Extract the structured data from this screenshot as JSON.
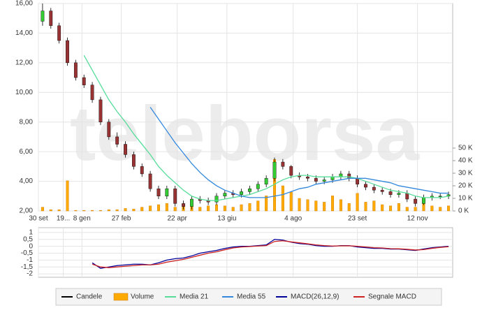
{
  "chart_data": [
    {
      "type": "candlestick",
      "watermark": "teleborsa",
      "grid": true,
      "legend": "bottom",
      "x": [
        1,
        3,
        5,
        7,
        9,
        11,
        13,
        15,
        17,
        19,
        21,
        23,
        25,
        27,
        29,
        31,
        33,
        35,
        37,
        39,
        41,
        43,
        45,
        47,
        49,
        51,
        53,
        55,
        57,
        59,
        61,
        63,
        65,
        67,
        69,
        71,
        73,
        75,
        77,
        79,
        81,
        83,
        85,
        87,
        89,
        91,
        93,
        95,
        97,
        99
      ],
      "xlim": [
        0,
        100
      ],
      "xticks": [
        {
          "value": 0,
          "label": "30 set"
        },
        {
          "value": 6,
          "label": "19..."
        },
        {
          "value": 10.5,
          "label": "8 gen"
        },
        {
          "value": 20,
          "label": "27 feb"
        },
        {
          "value": 33.5,
          "label": "22 apr"
        },
        {
          "value": 45.5,
          "label": "13 giu"
        },
        {
          "value": 61.5,
          "label": "4 ago"
        },
        {
          "value": 77,
          "label": "23 set"
        },
        {
          "value": 91.5,
          "label": "12 nov"
        }
      ],
      "ylim": [
        2,
        16
      ],
      "yticks": [
        {
          "value": 2,
          "label": "2,00"
        },
        {
          "value": 4,
          "label": "4,00"
        },
        {
          "value": 6,
          "label": "6,00"
        },
        {
          "value": 8,
          "label": "8,00"
        },
        {
          "value": 10,
          "label": "10,00"
        },
        {
          "value": 12,
          "label": "12,00"
        },
        {
          "value": 14,
          "label": "14,00"
        },
        {
          "value": 16,
          "label": "16,00"
        }
      ],
      "y2lim": [
        0,
        165000
      ],
      "y2ticks": [
        {
          "value": 0,
          "label": "0 K"
        },
        {
          "value": 10000,
          "label": "10 K"
        },
        {
          "value": 20000,
          "label": "20 K"
        },
        {
          "value": 30000,
          "label": "30 K"
        },
        {
          "value": 40000,
          "label": "40 K"
        },
        {
          "value": 50000,
          "label": "50 K"
        }
      ],
      "series": [
        {
          "name": "Candele",
          "type": "candlestick",
          "color": "#000000",
          "up_color": "#33cc33",
          "down_color": "#993333",
          "open": [
            14.8,
            15.5,
            14.5,
            13.5,
            12,
            11,
            10.5,
            9.5,
            8,
            7,
            6.5,
            5.8,
            5,
            4.5,
            3.5,
            3,
            3.5,
            2.5,
            2.3,
            2.8,
            2.7,
            2.6,
            3,
            3.2,
            3.1,
            3.3,
            3.5,
            3.8,
            4.2,
            5.3,
            5,
            4.4,
            4.3,
            4.2,
            4,
            4.1,
            4.3,
            4.5,
            4.2,
            3.8,
            3.6,
            3.4,
            3.3,
            3.1,
            3.2,
            2.8,
            2.5,
            2.9,
            3,
            3
          ],
          "high": [
            16,
            15.7,
            14.7,
            13.7,
            12.2,
            11.2,
            10.7,
            9.7,
            8.2,
            7.3,
            6.7,
            6,
            5.2,
            4.7,
            3.7,
            3.7,
            3.7,
            2.7,
            3,
            3,
            2.9,
            3.2,
            3.4,
            3.4,
            3.5,
            3.7,
            4,
            4.4,
            5.6,
            5.5,
            5.1,
            4.6,
            4.5,
            4.4,
            4.3,
            4.5,
            4.7,
            4.7,
            4.4,
            4,
            3.8,
            3.6,
            3.5,
            3.4,
            3.4,
            3,
            3.1,
            3.2,
            3.2,
            3.3
          ],
          "low": [
            14.5,
            14.3,
            13.3,
            11.8,
            10.8,
            10.3,
            9.3,
            7.8,
            6.8,
            6.3,
            5.6,
            4.8,
            4.3,
            3.3,
            2.8,
            2.8,
            2.3,
            2.1,
            2.1,
            2.5,
            2.4,
            2.4,
            2.8,
            2.9,
            2.9,
            3.1,
            3.3,
            3.6,
            4,
            4.8,
            4.2,
            4.1,
            4,
            3.8,
            3.8,
            3.9,
            4.1,
            4,
            3.6,
            3.4,
            3.2,
            3.1,
            2.9,
            2.9,
            2.6,
            2.3,
            2.4,
            2.7,
            2.8,
            2.8
          ],
          "close": [
            15.5,
            14.5,
            13.5,
            12,
            11,
            10.5,
            9.5,
            8,
            7,
            6.5,
            5.8,
            5,
            4.5,
            3.5,
            3,
            3.5,
            2.5,
            2.3,
            2.8,
            2.7,
            2.6,
            3,
            3.2,
            3.1,
            3.3,
            3.5,
            3.8,
            4.2,
            5.3,
            5,
            4.4,
            4.3,
            4.2,
            4,
            4.1,
            4.3,
            4.5,
            4.2,
            3.8,
            3.6,
            3.4,
            3.3,
            3.1,
            3.2,
            2.8,
            2.5,
            2.9,
            3,
            3,
            3.1
          ]
        },
        {
          "name": "Volume",
          "type": "bar",
          "axis": "y2",
          "color": "#ffaa00",
          "values": [
            3000,
            1000,
            1000,
            24000,
            500,
            500,
            500,
            500,
            1000,
            1000,
            2000,
            1500,
            3000,
            4000,
            5000,
            6000,
            3000,
            5000,
            4000,
            3000,
            4000,
            5000,
            4000,
            3000,
            5000,
            6000,
            8000,
            12000,
            41000,
            20000,
            15000,
            10000,
            9000,
            8000,
            7000,
            12000,
            9000,
            6000,
            14000,
            7000,
            8000,
            5000,
            4000,
            6000,
            3000,
            3000,
            7000,
            4000,
            3000,
            4000
          ]
        },
        {
          "name": "Media 21",
          "type": "line",
          "color": "#55dd99",
          "values": [
            null,
            null,
            null,
            null,
            null,
            12.5,
            11.5,
            10.5,
            9.5,
            8.7,
            8,
            7.2,
            6.5,
            5.8,
            5,
            4.4,
            3.9,
            3.4,
            3,
            2.8,
            2.7,
            2.7,
            2.8,
            2.9,
            3,
            3.1,
            3.3,
            3.5,
            3.8,
            4.1,
            4.3,
            4.4,
            4.4,
            4.3,
            4.3,
            4.3,
            4.3,
            4.3,
            4.2,
            4,
            3.8,
            3.6,
            3.4,
            3.3,
            3.2,
            3,
            2.9,
            2.9,
            2.9,
            3
          ]
        },
        {
          "name": "Media 55",
          "type": "line",
          "color": "#3388dd",
          "values": [
            null,
            null,
            null,
            null,
            null,
            null,
            null,
            null,
            null,
            null,
            null,
            null,
            null,
            9,
            8.2,
            7.4,
            6.6,
            5.9,
            5.2,
            4.6,
            4.1,
            3.7,
            3.4,
            3.2,
            3,
            2.9,
            2.9,
            2.9,
            3,
            3.1,
            3.3,
            3.5,
            3.6,
            3.8,
            3.9,
            4,
            4.1,
            4.2,
            4.2,
            4.2,
            4.1,
            4,
            3.9,
            3.7,
            3.6,
            3.5,
            3.4,
            3.3,
            3.2,
            3.2
          ]
        }
      ]
    },
    {
      "type": "line",
      "grid": true,
      "x": [
        1,
        3,
        5,
        7,
        9,
        11,
        13,
        15,
        17,
        19,
        21,
        23,
        25,
        27,
        29,
        31,
        33,
        35,
        37,
        39,
        41,
        43,
        45,
        47,
        49,
        51,
        53,
        55,
        57,
        59,
        61,
        63,
        65,
        67,
        69,
        71,
        73,
        75,
        77,
        79,
        81,
        83,
        85,
        87,
        89,
        91,
        93,
        95,
        97,
        99
      ],
      "xlim": [
        0,
        100
      ],
      "ylim": [
        -2.25,
        1.35
      ],
      "yticks": [
        1,
        {
          "value": 0.5,
          "label": "0,5"
        },
        0,
        {
          "value": -0.5,
          "label": "-0,5"
        },
        -1,
        {
          "value": -1.5,
          "label": "-1,5"
        },
        -2
      ],
      "series": [
        {
          "name": "MACD(26,12,9)",
          "color": "#000099",
          "values": [
            null,
            null,
            null,
            null,
            null,
            null,
            -1.2,
            -1.6,
            -1.5,
            -1.4,
            -1.35,
            -1.3,
            -1.3,
            -1.35,
            -1.2,
            -1,
            -0.9,
            -0.85,
            -0.7,
            -0.5,
            -0.4,
            -0.3,
            -0.15,
            -0.05,
            0,
            0,
            0.05,
            0.1,
            0.5,
            0.45,
            0.3,
            0.2,
            0.15,
            0.05,
            0,
            0,
            0.05,
            0.05,
            -0.05,
            -0.1,
            -0.15,
            -0.15,
            -0.2,
            -0.2,
            -0.25,
            -0.3,
            -0.2,
            -0.1,
            -0.05,
            0
          ]
        },
        {
          "name": "Segnale MACD",
          "color": "#cc2222",
          "values": [
            null,
            null,
            null,
            null,
            null,
            null,
            -1.3,
            -1.5,
            -1.55,
            -1.5,
            -1.45,
            -1.4,
            -1.35,
            -1.35,
            -1.3,
            -1.15,
            -1.05,
            -0.95,
            -0.8,
            -0.65,
            -0.5,
            -0.4,
            -0.25,
            -0.12,
            -0.05,
            -0.02,
            0.02,
            0.05,
            0.35,
            0.4,
            0.32,
            0.25,
            0.18,
            0.1,
            0.05,
            0.02,
            0.03,
            0.04,
            0,
            -0.05,
            -0.1,
            -0.12,
            -0.17,
            -0.18,
            -0.22,
            -0.27,
            -0.24,
            -0.15,
            -0.08,
            -0.03
          ]
        }
      ]
    }
  ]
}
